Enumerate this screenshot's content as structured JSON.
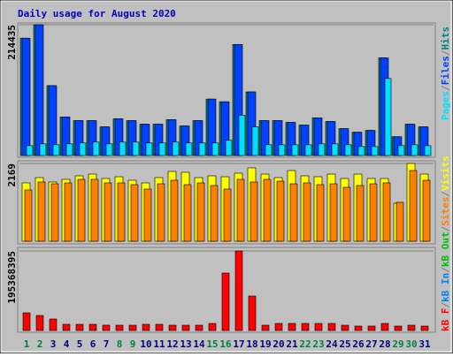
{
  "chart_data": [
    {
      "type": "bar",
      "title": "Daily usage for August 2020",
      "legend_separator": "/",
      "categories": [
        "1",
        "2",
        "3",
        "4",
        "5",
        "6",
        "7",
        "8",
        "9",
        "10",
        "11",
        "12",
        "13",
        "14",
        "15",
        "16",
        "17",
        "18",
        "19",
        "20",
        "21",
        "22",
        "23",
        "24",
        "25",
        "26",
        "27",
        "28",
        "29",
        "30",
        "31"
      ],
      "category_colors": [
        "#008040",
        "#008040",
        "#000080",
        "#000080",
        "#000080",
        "#000080",
        "#000080",
        "#008040",
        "#008040",
        "#000080",
        "#000080",
        "#000080",
        "#000080",
        "#000080",
        "#008040",
        "#008040",
        "#000080",
        "#000080",
        "#000080",
        "#000080",
        "#000080",
        "#008040",
        "#008040",
        "#000080",
        "#000080",
        "#000080",
        "#000080",
        "#000080",
        "#008040",
        "#008040",
        "#000080"
      ],
      "ylim": [
        0,
        214435
      ],
      "yticks": [
        214435
      ],
      "series": [
        {
          "name": "Hits",
          "color": "#008080",
          "values": [
            192400,
            214435,
            114560,
            63150,
            57280,
            57280,
            47000,
            60220,
            57280,
            51400,
            51400,
            58750,
            48470,
            57280,
            92530,
            88120,
            182120,
            104280,
            57280,
            57280,
            54340,
            49940,
            61690,
            55810,
            44060,
            38190,
            41120,
            160090,
            30840,
            51400,
            47000
          ]
        },
        {
          "name": "Files",
          "color": "#0040ff",
          "values": [
            192400,
            214435,
            114560,
            63150,
            57280,
            57280,
            47000,
            60220,
            57280,
            51400,
            51400,
            58750,
            48470,
            57280,
            92530,
            88120,
            182120,
            104280,
            57280,
            57280,
            54340,
            49940,
            61690,
            55810,
            44060,
            38190,
            41120,
            160090,
            30840,
            51400,
            47000
          ]
        },
        {
          "name": "Pages",
          "color": "#00e0ff",
          "values": [
            16160,
            19100,
            17630,
            19100,
            20570,
            22040,
            19100,
            22040,
            22040,
            20570,
            20570,
            22040,
            20570,
            20570,
            20570,
            24970,
            66100,
            47000,
            17630,
            17630,
            17630,
            17630,
            19100,
            19100,
            17630,
            14690,
            14690,
            126330,
            16160,
            17630,
            16160
          ]
        }
      ]
    },
    {
      "type": "bar",
      "ylim": [
        0,
        2169
      ],
      "yticks": [
        2169
      ],
      "series": [
        {
          "name": "Visits",
          "color": "#ffff00",
          "values": [
            1627,
            1775,
            1652,
            1726,
            1824,
            1873,
            1750,
            1799,
            1701,
            1627,
            1775,
            1947,
            1923,
            1775,
            1824,
            1799,
            1898,
            2046,
            1873,
            1775,
            1972,
            1824,
            1799,
            1873,
            1750,
            1873,
            1750,
            1750,
            1060,
            2169,
            1873
          ]
        },
        {
          "name": "Sites",
          "color": "#ff8000",
          "values": [
            1430,
            1652,
            1602,
            1627,
            1726,
            1726,
            1627,
            1627,
            1578,
            1454,
            1602,
            1701,
            1578,
            1627,
            1553,
            1454,
            1726,
            1652,
            1726,
            1676,
            1602,
            1627,
            1578,
            1602,
            1504,
            1553,
            1602,
            1627,
            1085,
            1972,
            1701
          ]
        }
      ]
    },
    {
      "type": "bar",
      "ylim": [
        0,
        195368395
      ],
      "yticks": [
        195368395
      ],
      "series": [
        {
          "name": "kB F",
          "color": "#ff0000",
          "values": [
            43415200,
            36902900,
            28219900,
            15195300,
            15195300,
            15195300,
            13024600,
            13024600,
            13024600,
            15195300,
            15195300,
            13024600,
            13024600,
            13024600,
            17366100,
            141099400,
            195368395,
            84659600,
            13024600,
            17366100,
            17366100,
            17366100,
            17366100,
            17366100,
            13024600,
            10853800,
            10853800,
            17366100,
            10853800,
            13024600,
            10853800
          ]
        }
      ],
      "legend_only": [
        {
          "name": "kB In",
          "color": "#0080ff"
        },
        {
          "name": "kB Out",
          "color": "#00c000"
        }
      ]
    }
  ]
}
